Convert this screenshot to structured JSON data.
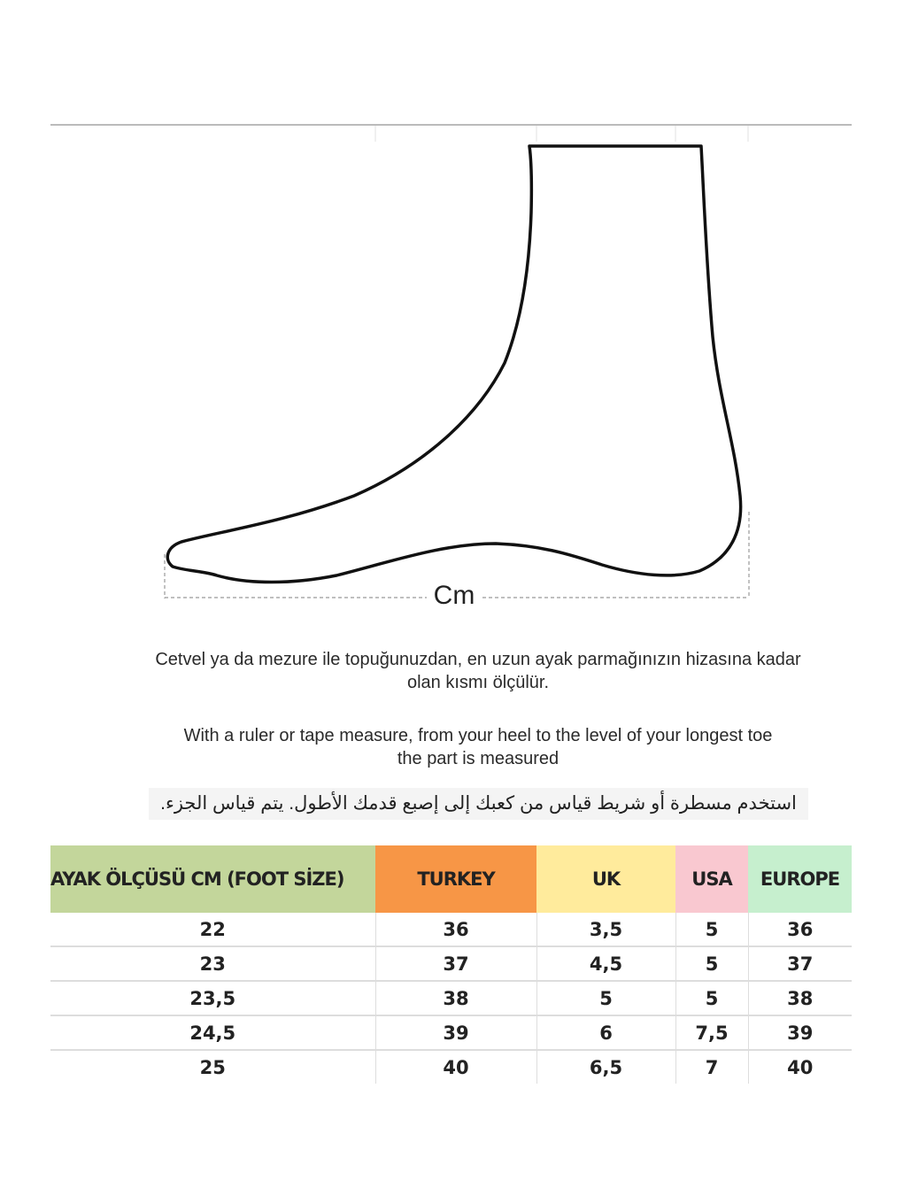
{
  "diagram": {
    "measure_label": "Cm"
  },
  "instructions": {
    "turkish": [
      "Cetvel ya da mezure ile topuğunuzdan, en uzun ayak parmağınızın hizasına kadar",
      "olan kısmı ölçülür."
    ],
    "english": [
      "With a ruler or tape measure, from your heel to the level of your longest toe",
      "the part is measured"
    ],
    "arabic": "استخدم مسطرة أو شريط قياس من كعبك إلى إصبع قدمك الأطول.  يتم قياس الجزء."
  },
  "table": {
    "headers": [
      {
        "label": "AYAK ÖLÇÜSÜ CM (FOOT SİZE)",
        "color": "#c3d69b"
      },
      {
        "label": "TURKEY",
        "color": "#f79646"
      },
      {
        "label": "UK",
        "color": "#ffeb9c"
      },
      {
        "label": "USA",
        "color": "#f9c8d0"
      },
      {
        "label": "EUROPE",
        "color": "#c6efce"
      }
    ],
    "rows": [
      [
        "22",
        "36",
        "3,5",
        "5",
        "36"
      ],
      [
        "23",
        "37",
        "4,5",
        "5",
        "37"
      ],
      [
        "23,5",
        "38",
        "5",
        "5",
        "38"
      ],
      [
        "24,5",
        "39",
        "6",
        "7,5",
        "39"
      ],
      [
        "25",
        "40",
        "6,5",
        "7",
        "40"
      ]
    ]
  }
}
